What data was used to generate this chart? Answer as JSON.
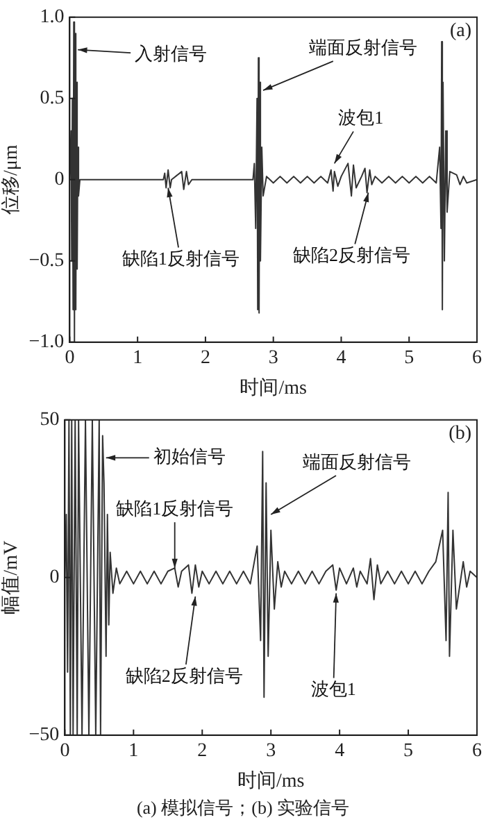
{
  "chart_data": [
    {
      "type": "line",
      "title": "(a)",
      "xlabel": "时间/ms",
      "ylabel": "位移/μm",
      "xlim": [
        0,
        6
      ],
      "xticks": [
        0,
        1,
        2,
        3,
        4,
        5,
        6
      ],
      "ylim": [
        -1,
        1
      ],
      "yticks": [
        {
          "value": -1,
          "label": "−1.0"
        },
        {
          "value": -0.5,
          "label": "−0.5"
        },
        0,
        0.5,
        {
          "value": 1,
          "label": "1.0"
        }
      ],
      "grid": false,
      "legend": false,
      "marker": "none",
      "line_style": "solid",
      "series": [
        {
          "color": "#333333",
          "x": [
            0,
            0.02,
            0.03,
            0.04,
            0.05,
            0.06,
            0.07,
            0.08,
            0.09,
            0.1,
            0.11,
            0.12,
            0.13,
            0.15,
            1.38,
            1.4,
            1.42,
            1.45,
            1.48,
            1.5,
            1.65,
            1.68,
            1.72,
            1.75,
            1.8,
            2.7,
            2.72,
            2.74,
            2.76,
            2.77,
            2.78,
            2.79,
            2.8,
            2.81,
            2.83,
            2.85,
            2.9,
            3.0,
            3.1,
            3.2,
            3.3,
            3.4,
            3.5,
            3.6,
            3.7,
            3.8,
            3.85,
            3.88,
            3.9,
            3.95,
            4.0,
            4.1,
            4.15,
            4.18,
            4.22,
            4.3,
            4.35,
            4.38,
            4.42,
            4.45,
            4.5,
            4.6,
            4.7,
            4.8,
            4.9,
            5.0,
            5.1,
            5.2,
            5.3,
            5.4,
            5.45,
            5.47,
            5.48,
            5.49,
            5.5,
            5.52,
            5.54,
            5.56,
            5.6,
            5.7,
            5.75,
            5.8,
            5.85,
            6
          ],
          "values": [
            0,
            0.3,
            -0.5,
            0.5,
            -0.8,
            0.97,
            -1.0,
            0.9,
            -0.8,
            0.6,
            -0.55,
            0.2,
            -0.1,
            0,
            0,
            0.04,
            -0.05,
            0.06,
            -0.05,
            0,
            0.05,
            -0.06,
            0.05,
            -0.03,
            0,
            0,
            0.1,
            -0.3,
            0.5,
            -0.8,
            0.75,
            -0.82,
            0.6,
            -0.5,
            0.2,
            -0.1,
            0.02,
            -0.02,
            0.02,
            -0.02,
            0.02,
            -0.02,
            0.02,
            -0.02,
            0.02,
            -0.02,
            0.06,
            -0.07,
            0.05,
            -0.04,
            0.02,
            0.1,
            -0.1,
            0.09,
            -0.05,
            0.02,
            0.07,
            -0.08,
            0.06,
            -0.03,
            0.02,
            -0.02,
            0.02,
            -0.02,
            0.02,
            -0.02,
            0.02,
            -0.02,
            0.02,
            -0.02,
            0.2,
            -0.3,
            0.85,
            -0.8,
            0.6,
            -0.5,
            0.3,
            -0.2,
            0.05,
            0.03,
            -0.03,
            0.02,
            -0.02,
            0
          ]
        }
      ],
      "annotations": [
        {
          "text": "入射信号",
          "x": 0.12,
          "y": 0.8
        },
        {
          "text": "端面反射信号",
          "x": 2.85,
          "y": 0.55
        },
        {
          "text": "波包1",
          "x": 3.9,
          "y": 0.1
        },
        {
          "text": "缺陷1反射信号",
          "x": 1.45,
          "y": -0.05
        },
        {
          "text": "缺陷2反射信号",
          "x": 4.4,
          "y": -0.08
        }
      ]
    },
    {
      "type": "line",
      "title": "(b)",
      "xlabel": "时间/ms",
      "ylabel": "幅值/mV",
      "xlim": [
        0,
        6
      ],
      "xticks": [
        0,
        1,
        2,
        3,
        4,
        5,
        6
      ],
      "ylim": [
        -50,
        50
      ],
      "yticks": [
        {
          "value": -50,
          "label": "−50"
        },
        0,
        50
      ],
      "grid": false,
      "legend": false,
      "marker": "none",
      "line_style": "solid",
      "series": [
        {
          "color": "#333333",
          "x": [
            0,
            0.02,
            0.04,
            0.06,
            0.08,
            0.1,
            0.12,
            0.15,
            0.18,
            0.2,
            0.25,
            0.3,
            0.35,
            0.4,
            0.45,
            0.5,
            0.52,
            0.55,
            0.57,
            0.6,
            0.62,
            0.64,
            0.66,
            0.7,
            0.75,
            0.8,
            0.9,
            1.0,
            1.1,
            1.2,
            1.3,
            1.4,
            1.5,
            1.6,
            1.65,
            1.7,
            1.8,
            1.85,
            1.9,
            1.95,
            2.0,
            2.1,
            2.2,
            2.3,
            2.4,
            2.5,
            2.6,
            2.7,
            2.8,
            2.85,
            2.88,
            2.9,
            2.93,
            2.96,
            3.0,
            3.05,
            3.1,
            3.15,
            3.2,
            3.3,
            3.4,
            3.5,
            3.6,
            3.7,
            3.8,
            3.9,
            3.95,
            4.0,
            4.1,
            4.2,
            4.25,
            4.3,
            4.4,
            4.45,
            4.5,
            4.55,
            4.6,
            4.7,
            4.8,
            4.9,
            5.0,
            5.1,
            5.2,
            5.3,
            5.4,
            5.5,
            5.55,
            5.58,
            5.6,
            5.65,
            5.7,
            5.8,
            5.85,
            5.9,
            6
          ],
          "values": [
            0,
            20,
            -30,
            50,
            -50,
            50,
            -50,
            50,
            -50,
            50,
            -50,
            50,
            -50,
            50,
            -50,
            50,
            -50,
            45,
            30,
            -25,
            20,
            -15,
            8,
            -5,
            3,
            -2,
            2,
            -2,
            2,
            -2,
            2,
            -2,
            2,
            3,
            -3,
            2,
            4,
            -5,
            4,
            -3,
            2,
            -2,
            2,
            -2,
            2,
            -2,
            2,
            -2,
            10,
            -20,
            40,
            -38,
            30,
            -25,
            15,
            -10,
            5,
            -3,
            2,
            -2,
            2,
            -2,
            2,
            -2,
            2,
            4,
            -4,
            3,
            -2,
            3,
            -3,
            2,
            -2,
            6,
            -7,
            4,
            -2,
            2,
            -2,
            2,
            -2,
            2,
            -2,
            2,
            5,
            15,
            -20,
            27,
            -25,
            15,
            -10,
            5,
            -3,
            2,
            0
          ]
        }
      ],
      "annotations": [
        {
          "text": "初始信号",
          "x": 0.6,
          "y": 38
        },
        {
          "text": "端面反射信号",
          "x": 3.0,
          "y": 20
        },
        {
          "text": "缺陷1反射信号",
          "x": 1.6,
          "y": 3
        },
        {
          "text": "缺陷2反射信号",
          "x": 1.9,
          "y": -6
        },
        {
          "text": "波包1",
          "x": 3.95,
          "y": -5
        },
        "(a) 模拟信号；(b) 实验信号"
      ]
    }
  ]
}
